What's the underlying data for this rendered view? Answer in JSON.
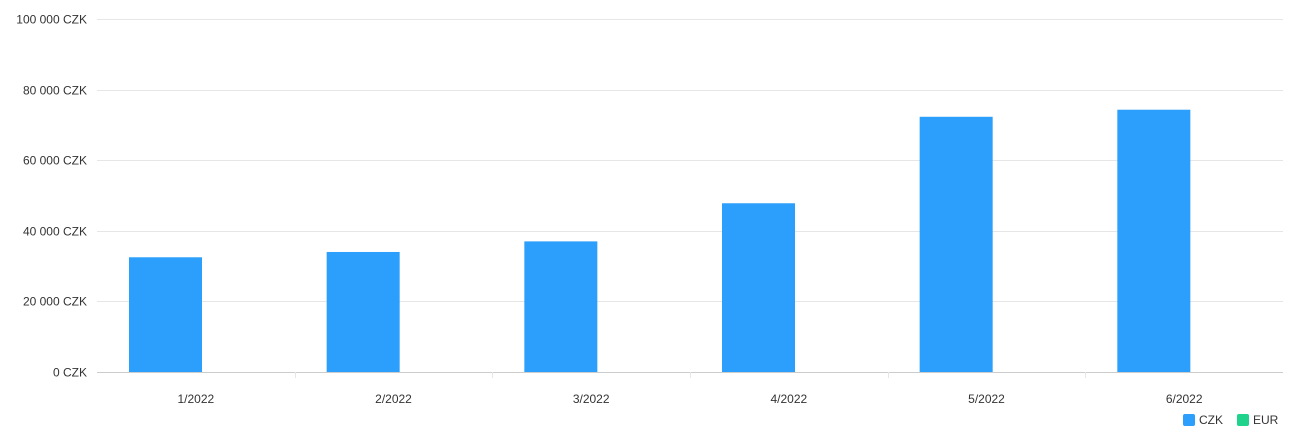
{
  "chart_data": {
    "type": "bar",
    "categories": [
      "1/2022",
      "2/2022",
      "3/2022",
      "4/2022",
      "5/2022",
      "6/2022"
    ],
    "series": [
      {
        "name": "CZK",
        "color": "#2b9ffb",
        "values": [
          32500,
          34000,
          37000,
          47800,
          72300,
          74300
        ]
      },
      {
        "name": "EUR",
        "color": "#1fd38c",
        "values": [
          0,
          0,
          0,
          0,
          0,
          0
        ]
      }
    ],
    "y_tick_labels": [
      "0 CZK",
      "20 000 CZK",
      "40 000 CZK",
      "60 000 CZK",
      "80 000 CZK",
      "100 000 CZK"
    ],
    "y_ticks": [
      0,
      20000,
      40000,
      60000,
      80000,
      100000
    ],
    "ylim": [
      0,
      100000
    ],
    "title": "",
    "xlabel": "",
    "ylabel": "",
    "grid": true,
    "legend_position": "bottom-right",
    "colors": {
      "grid": "#e6e6e6",
      "axis": "#cccccc",
      "text": "#333333"
    }
  }
}
